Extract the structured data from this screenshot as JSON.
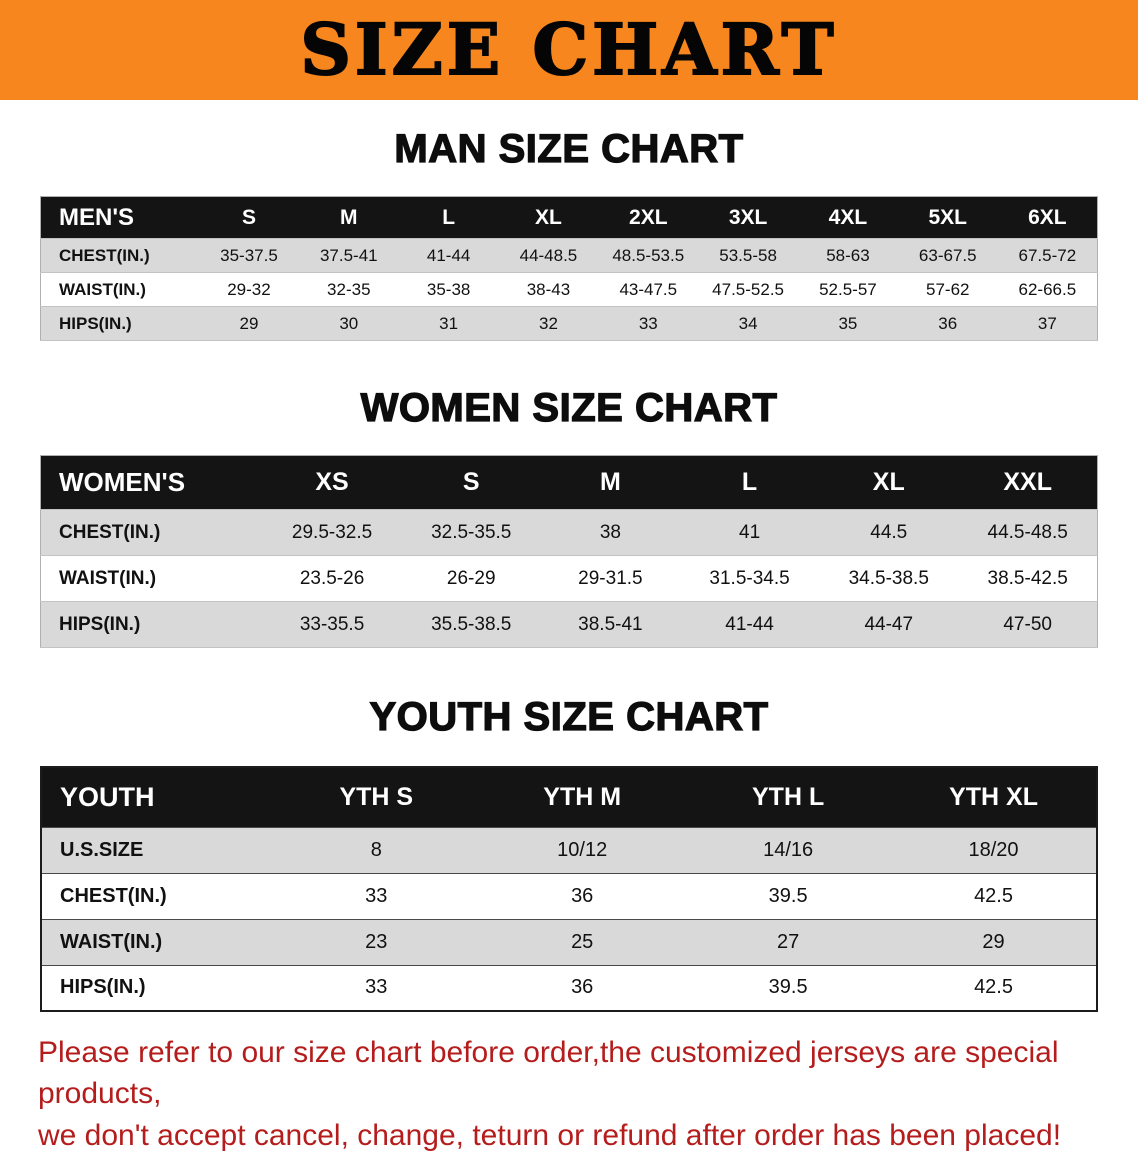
{
  "banner": {
    "title": "SIZE CHART",
    "background_color": "#f6861d",
    "title_color": "#050505"
  },
  "chart_data": [
    {
      "type": "table",
      "title": "MAN SIZE CHART",
      "columns": [
        "MEN'S",
        "S",
        "M",
        "L",
        "XL",
        "2XL",
        "3XL",
        "4XL",
        "5XL",
        "6XL"
      ],
      "rows": [
        [
          "CHEST(IN.)",
          "35-37.5",
          "37.5-41",
          "41-44",
          "44-48.5",
          "48.5-53.5",
          "53.5-58",
          "58-63",
          "63-67.5",
          "67.5-72"
        ],
        [
          "WAIST(IN.)",
          "29-32",
          "32-35",
          "35-38",
          "38-43",
          "43-47.5",
          "47.5-52.5",
          "52.5-57",
          "57-62",
          "62-66.5"
        ],
        [
          "HIPS(IN.)",
          "29",
          "30",
          "31",
          "32",
          "33",
          "34",
          "35",
          "36",
          "37"
        ]
      ],
      "header_background": "#141414",
      "alt_row_background": "#d9d9d9"
    },
    {
      "type": "table",
      "title": "WOMEN SIZE CHART",
      "columns": [
        "WOMEN'S",
        "XS",
        "S",
        "M",
        "L",
        "XL",
        "XXL"
      ],
      "rows": [
        [
          "CHEST(IN.)",
          "29.5-32.5",
          "32.5-35.5",
          "38",
          "41",
          "44.5",
          "44.5-48.5"
        ],
        [
          "WAIST(IN.)",
          "23.5-26",
          "26-29",
          "29-31.5",
          "31.5-34.5",
          "34.5-38.5",
          "38.5-42.5"
        ],
        [
          "HIPS(IN.)",
          "33-35.5",
          "35.5-38.5",
          "38.5-41",
          "41-44",
          "44-47",
          "47-50"
        ]
      ],
      "header_background": "#141414",
      "alt_row_background": "#d9d9d9"
    },
    {
      "type": "table",
      "title": "YOUTH SIZE CHART",
      "columns": [
        "YOUTH",
        "YTH S",
        "YTH M",
        "YTH L",
        "YTH XL"
      ],
      "rows": [
        [
          "U.S.SIZE",
          "8",
          "10/12",
          "14/16",
          "18/20"
        ],
        [
          "CHEST(IN.)",
          "33",
          "36",
          "39.5",
          "42.5"
        ],
        [
          "WAIST(IN.)",
          "23",
          "25",
          "27",
          "29"
        ],
        [
          "HIPS(IN.)",
          "33",
          "36",
          "39.5",
          "42.5"
        ]
      ],
      "header_background": "#141414",
      "alt_row_background": "#d9d9d9"
    }
  ],
  "disclaimer": {
    "line1": "Please refer to our size chart before order,the customized jerseys are special products,",
    "line2": "we don't accept cancel, change, teturn or refund after order has been placed!",
    "color": "#b51d1d"
  }
}
